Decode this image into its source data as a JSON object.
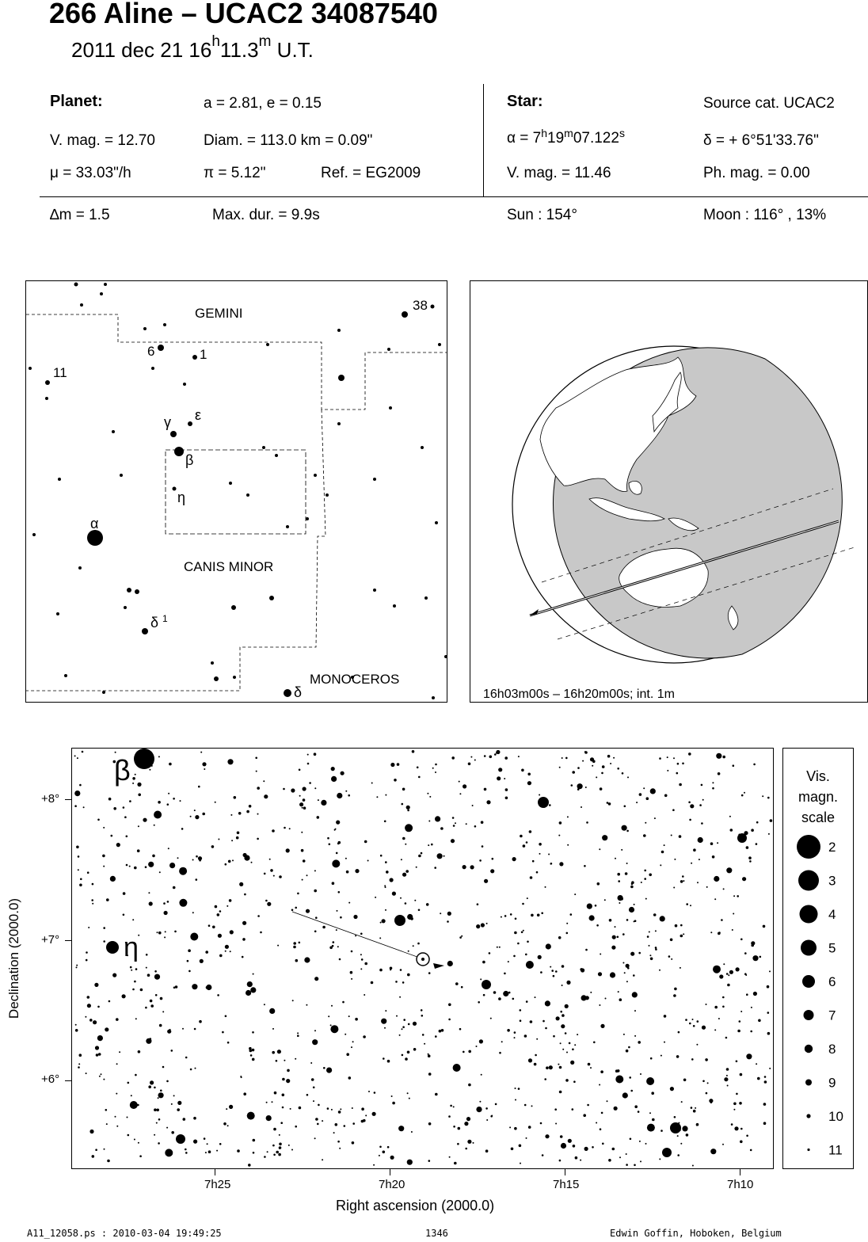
{
  "header": {
    "title": "266 Aline  –  UCAC2 34087540",
    "date": "2011 dec 21  16",
    "hour_unit": "h",
    "minutes": "11.3",
    "minute_unit": "m",
    "time_suffix": " U.T."
  },
  "planet": {
    "heading": "Planet:",
    "orbit": "a = 2.81, e = 0.15",
    "vmag": "V. mag. = 12.70",
    "diam": "Diam. = 113.0 km = 0.09\"",
    "motion": "μ =  33.03\"/h",
    "parallax": "π =  5.12\"",
    "ref": "Ref. = EG2009"
  },
  "star": {
    "heading": "Star:",
    "source": "Source cat.  UCAC2",
    "ra_prefix": "α =  7",
    "ra_h": "h",
    "ra_min": "19",
    "ra_m": "m",
    "ra_sec": "07.122",
    "ra_s": "s",
    "dec": "δ = + 6°51'33.76\"",
    "vmag": "V. mag. = 11.46",
    "phmag": "Ph. mag. =  0.00"
  },
  "event": {
    "delta_mag": "∆m = 1.5",
    "max_dur": "Max. dur. = 9.9s",
    "sun": "Sun : 154°",
    "moon": "Moon : 116° , 13%"
  },
  "finder_chart": {
    "constellations": [
      "GEMINI",
      "CANIS MINOR",
      "MONOCEROS"
    ],
    "star_labels": [
      "38",
      "6",
      "1",
      "11",
      "γ",
      "ε",
      "β",
      "η",
      "α",
      "δ",
      "1",
      "δ"
    ]
  },
  "globe": {
    "caption": "16h03m00s – 16h20m00s; int.  1m"
  },
  "star_chart": {
    "ylabel": "Declination (2000.0)",
    "xlabel": "Right ascension (2000.0)",
    "dec_ticks": [
      "+8°",
      "+7°",
      "+6°"
    ],
    "ra_ticks": [
      "7h25",
      "7h20",
      "7h15",
      "7h10"
    ],
    "labels": [
      "β",
      "η"
    ]
  },
  "mag_scale": {
    "title": "Vis.\nmagn.\nscale",
    "title_lines": [
      "Vis.",
      "magn.",
      "scale"
    ],
    "values": [
      "2",
      "3",
      "4",
      "5",
      "6",
      "7",
      "8",
      "9",
      "10",
      "11"
    ]
  },
  "footer": {
    "file": "A11_12058.ps : 2010-03-04 19:49:25",
    "page": "1346",
    "author": "Edwin Goffin, Hoboken, Belgium"
  }
}
